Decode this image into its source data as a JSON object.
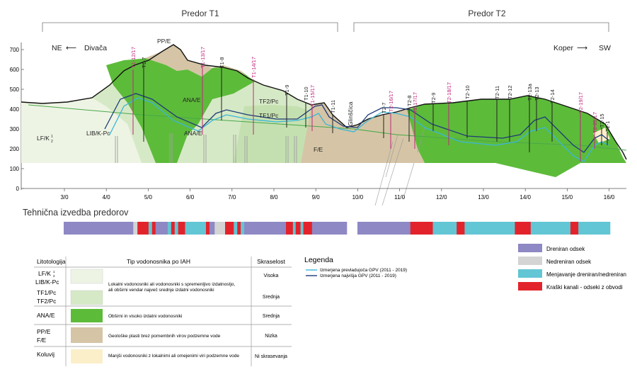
{
  "tunnels": {
    "t1": "Predor T1",
    "t2": "Predor T2"
  },
  "directions": {
    "left_code": "NE",
    "left_arrow": "⟵",
    "left_place": "Divača",
    "right_place": "Koper",
    "right_arrow": "⟶",
    "right_code": "SW"
  },
  "y_axis": {
    "ticks": [
      "700",
      "600",
      "500",
      "400",
      "300",
      "200",
      "100",
      "0"
    ]
  },
  "x_axis": {
    "ticks": [
      "3/0",
      "4/0",
      "5/0",
      "6/0",
      "7/0",
      "8/0",
      "9/0",
      "10/0",
      "11/0",
      "12/0",
      "13/0",
      "14/0",
      "15/0",
      "16/0"
    ]
  },
  "section_labels": {
    "ppe_top": "PP/E",
    "ana_e_1": "ANA/E",
    "ana_e_2": "ANA/E",
    "tf2_pc": "TF2/Pc",
    "tf1_pc": "TF1/Pc",
    "lf_k": "LF/K",
    "lf_k_sup": "1",
    "lf_k_sub": "2",
    "lib_k_pc": "LIB/K-Pc",
    "fe": "F/E",
    "glinscica": "Glinščica"
  },
  "boreholes": [
    {
      "name": "T1-12/17",
      "color": "#c0267c"
    },
    {
      "name": "T1-7",
      "color": "#222222"
    },
    {
      "name": "T1-13/17",
      "color": "#c0267c"
    },
    {
      "name": "T1-8",
      "color": "#222222"
    },
    {
      "name": "T1-14/17",
      "color": "#c0267c"
    },
    {
      "name": "T1-9",
      "color": "#222222"
    },
    {
      "name": "T1-10",
      "color": "#222222"
    },
    {
      "name": "T1-15/17",
      "color": "#c0267c"
    },
    {
      "name": "T1-11",
      "color": "#222222"
    },
    {
      "name": "T2-7",
      "color": "#222222"
    },
    {
      "name": "T2-16/17",
      "color": "#c0267c"
    },
    {
      "name": "T2-8",
      "color": "#222222"
    },
    {
      "name": "T2-17/17",
      "color": "#c0267c"
    },
    {
      "name": "T2-9",
      "color": "#222222"
    },
    {
      "name": "T2-18/17",
      "color": "#c0267c"
    },
    {
      "name": "T2-10",
      "color": "#222222"
    },
    {
      "name": "T2-11",
      "color": "#222222"
    },
    {
      "name": "T2-12",
      "color": "#222222"
    },
    {
      "name": "T2-13a",
      "color": "#222222"
    },
    {
      "name": "T2-13",
      "color": "#222222"
    },
    {
      "name": "T2-14",
      "color": "#222222"
    },
    {
      "name": "T2-19/17",
      "color": "#c0267c"
    },
    {
      "name": "T2-20/17",
      "color": "#c0267c"
    },
    {
      "name": "T2-15",
      "color": "#222222"
    },
    {
      "name": "T2-1",
      "color": "#222222"
    }
  ],
  "design_title": "Tehnična izvedba predorov",
  "bar_colors": {
    "drained": "#8e88c4",
    "undrained": "#d4d4d4",
    "changing": "#62c6d4",
    "karst": "#e3232b"
  },
  "bar_t1": [
    {
      "type": "drained",
      "len": 20
    },
    {
      "type": "undrained",
      "len": 1.2
    },
    {
      "type": "karst",
      "len": 3.2
    },
    {
      "type": "changing",
      "len": 1
    },
    {
      "type": "karst",
      "len": 1
    },
    {
      "type": "drained",
      "len": 3.5
    },
    {
      "type": "changing",
      "len": 1
    },
    {
      "type": "karst",
      "len": 1
    },
    {
      "type": "changing",
      "len": 1
    },
    {
      "type": "karst",
      "len": 2
    },
    {
      "type": "changing",
      "len": 6
    },
    {
      "type": "karst",
      "len": 1
    },
    {
      "type": "drained",
      "len": 1.5
    },
    {
      "type": "undrained",
      "len": 3
    },
    {
      "type": "karst",
      "len": 2.5
    },
    {
      "type": "changing",
      "len": 1
    },
    {
      "type": "karst",
      "len": 1
    },
    {
      "type": "changing",
      "len": 1
    },
    {
      "type": "drained",
      "len": 12
    },
    {
      "type": "karst",
      "len": 2
    },
    {
      "type": "changing",
      "len": 0.8
    },
    {
      "type": "karst",
      "len": 1.4
    },
    {
      "type": "changing",
      "len": 0.8
    },
    {
      "type": "karst",
      "len": 2.5
    },
    {
      "type": "drained",
      "len": 10
    }
  ],
  "bar_t2": [
    {
      "type": "drained",
      "len": 20
    },
    {
      "type": "karst",
      "len": 8.5
    },
    {
      "type": "changing",
      "len": 9
    },
    {
      "type": "karst",
      "len": 3
    },
    {
      "type": "changing",
      "len": 19
    },
    {
      "type": "karst",
      "len": 6
    },
    {
      "type": "changing",
      "len": 15
    },
    {
      "type": "karst",
      "len": 3
    },
    {
      "type": "changing",
      "len": 12
    }
  ],
  "table": {
    "headers": [
      "Litotologija",
      "Tip vodonosnika po IAH",
      "Skraselost"
    ],
    "rows": [
      {
        "litho": [
          "LF/K",
          "LIB/K-Pc"
        ],
        "litho_sup": "1",
        "litho_sub": "2",
        "swatch": "#eef4e4",
        "desc": [
          "Lokalni vodonosniki ali vodonosniki s spremenljivo izdatnostjo,",
          "ali obširni vendar največ srednje izdatni vodonosniki"
        ],
        "kars": "Visoka"
      },
      {
        "litho": [
          "TF1/Pc",
          "TF2/Pc"
        ],
        "swatch": "#d6e9c6",
        "desc": [],
        "kars": "Srednja"
      },
      {
        "litho": [
          "ANA/E"
        ],
        "swatch": "#5dbb3a",
        "desc": [
          "Obširni in visoko izdatni vodonosniki"
        ],
        "kars": "Srednja"
      },
      {
        "litho": [
          "PP/E",
          "F/E"
        ],
        "swatch": "#d5c5a6",
        "desc": [
          "Geološke plasti brez pomembnih virov podzemne vode"
        ],
        "kars": "Nizka"
      },
      {
        "litho": [
          "Koluvij"
        ],
        "swatch": "#fbefc9",
        "desc": [
          "Manjši vodonosniki z lokalnimi ali omejenimi viri podzemne vode"
        ],
        "kars": "Ni skrasevanja"
      }
    ]
  },
  "legend": {
    "title": "Legenda",
    "lines": [
      {
        "label": "Izmerjena prevladujoča GPV (2011 - 2019)",
        "color": "#3bb6d8"
      },
      {
        "label": "Izmerjena najvišja GPV (2011 - 2019)",
        "color": "#1d3b78"
      }
    ]
  },
  "bar_legend": [
    {
      "type": "drained",
      "label": "Dreniran odsek"
    },
    {
      "type": "undrained",
      "label": "Nedreniran odsek"
    },
    {
      "type": "changing",
      "label": "Menjavanje dreniran/nedreniran"
    },
    {
      "type": "karst",
      "label": "Kraški kanali - odseki z obvodi"
    }
  ],
  "colors": {
    "lf_k": "#eef4e4",
    "tf": "#d6e9c6",
    "tf_mid": "#c5e0b0",
    "ana": "#5dbb3a",
    "pp": "#d5c5a6",
    "koluvij": "#fbefc9",
    "terrain": "#111111",
    "gpv_prev": "#3bb6d8",
    "gpv_max": "#1d3b78",
    "tunnel_line": "#49a84b"
  }
}
